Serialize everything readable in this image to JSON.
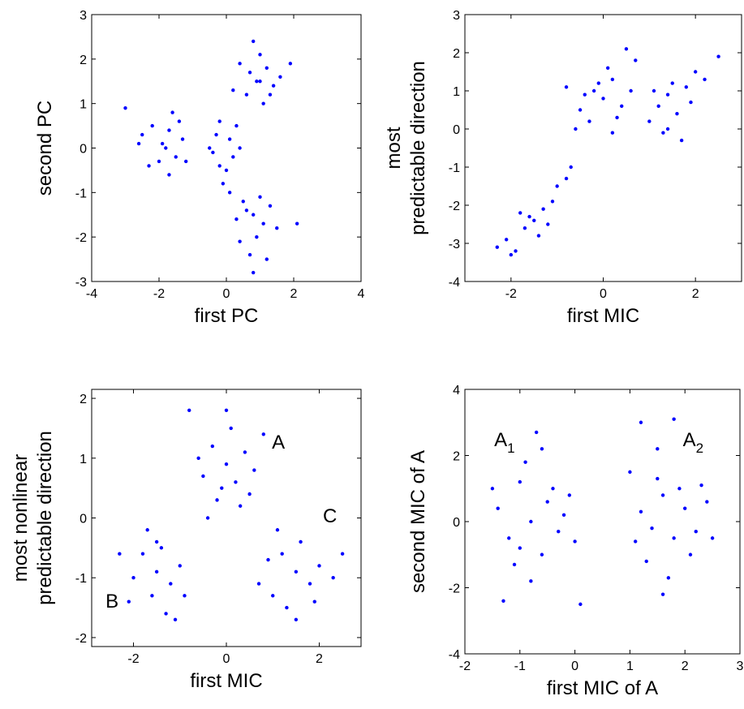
{
  "chart_data": [
    {
      "type": "scatter",
      "xlabel": "first PC",
      "ylabel": [
        "second PC"
      ],
      "color": "#0000ff",
      "xlim": [
        -4,
        4
      ],
      "ylim": [
        -3,
        3
      ],
      "xticks": [
        -4,
        -2,
        0,
        2,
        4
      ],
      "yticks": [
        -3,
        -2,
        -1,
        0,
        1,
        2,
        3
      ],
      "x": [
        -2.5,
        -2.2,
        -1.9,
        -1.7,
        -1.5,
        -2.0,
        -1.6,
        -1.3,
        -2.3,
        -1.8,
        -1.4,
        -2.6,
        -1.2,
        -3.0,
        -1.7,
        -0.2,
        0.1,
        -0.4,
        0.0,
        -0.3,
        0.2,
        -0.1,
        0.3,
        -0.5,
        0.1,
        -0.2,
        0.4,
        0.9,
        1.2,
        0.6,
        1.0,
        1.4,
        0.7,
        1.1,
        0.4,
        1.6,
        0.8,
        1.3,
        0.2,
        1.9,
        1.0,
        0.8,
        0.5,
        1.1,
        0.9,
        0.3,
        1.3,
        0.7,
        1.0,
        0.4,
        1.5,
        0.6,
        1.2,
        2.1,
        0.8
      ],
      "values": [
        0.3,
        0.5,
        0.1,
        0.4,
        -0.2,
        -0.3,
        0.8,
        0.2,
        -0.4,
        0.0,
        0.6,
        0.1,
        -0.3,
        0.9,
        -0.6,
        0.6,
        0.2,
        -0.1,
        -0.5,
        0.3,
        -0.2,
        -0.8,
        0.5,
        0.0,
        -1.0,
        -0.4,
        0.0,
        1.5,
        1.8,
        1.2,
        2.1,
        1.4,
        1.7,
        1.0,
        1.9,
        1.6,
        2.4,
        1.2,
        1.3,
        1.9,
        1.5,
        -1.5,
        -1.2,
        -1.7,
        -2.0,
        -1.6,
        -1.3,
        -2.4,
        -1.1,
        -2.1,
        -1.8,
        -1.4,
        -2.5,
        -1.7,
        -2.8
      ]
    },
    {
      "type": "scatter",
      "xlabel": "first MIC",
      "ylabel": [
        "most",
        "predictable direction"
      ],
      "color": "#0000ff",
      "xlim": [
        -3,
        3
      ],
      "ylim": [
        -4,
        3
      ],
      "xticks": [
        -2,
        0,
        2
      ],
      "yticks": [
        -4,
        -3,
        -2,
        -1,
        0,
        1,
        2,
        3
      ],
      "x": [
        -2.3,
        -2.1,
        -1.9,
        -1.7,
        -1.5,
        -1.4,
        -1.3,
        -1.6,
        -1.1,
        -1.0,
        -0.8,
        -1.2,
        -0.7,
        -2.0,
        -1.8,
        -0.5,
        -0.2,
        0.0,
        0.2,
        0.4,
        -0.3,
        0.1,
        0.5,
        -0.6,
        0.3,
        -0.1,
        0.6,
        -0.8,
        0.2,
        0.7,
        -0.4,
        1.0,
        1.2,
        1.4,
        1.6,
        1.8,
        1.3,
        2.0,
        1.5,
        2.2,
        1.1,
        1.7,
        2.5,
        1.9,
        1.4
      ],
      "values": [
        -3.1,
        -2.9,
        -3.2,
        -2.6,
        -2.4,
        -2.8,
        -2.1,
        -2.3,
        -1.9,
        -1.5,
        -1.3,
        -2.5,
        -1.0,
        -3.3,
        -2.2,
        0.5,
        1.0,
        0.8,
        1.3,
        0.6,
        0.2,
        1.6,
        2.1,
        0.0,
        0.3,
        1.2,
        1.0,
        1.1,
        -0.1,
        1.8,
        0.9,
        0.2,
        0.6,
        0.9,
        0.4,
        1.1,
        -0.1,
        1.5,
        1.2,
        1.3,
        1.0,
        -0.3,
        1.9,
        0.7,
        0.0
      ]
    },
    {
      "type": "scatter",
      "xlabel": "first MIC",
      "ylabel": [
        "most nonlinear",
        "predictable direction"
      ],
      "color": "#0000ff",
      "xlim": [
        -2.9,
        2.9
      ],
      "ylim": [
        -2.15,
        2.15
      ],
      "xticks": [
        -2,
        0,
        2
      ],
      "yticks": [
        -2,
        -1,
        0,
        1,
        2
      ],
      "x": [
        0,
        -0.3,
        0.2,
        0.4,
        -0.5,
        0.1,
        -0.2,
        0.6,
        -0.6,
        0.3,
        0.0,
        -0.8,
        0.8,
        -0.1,
        0.5,
        -0.4,
        -1.5,
        -1.8,
        -1.2,
        -2.0,
        -1.4,
        -1.6,
        -1.0,
        -2.3,
        -1.3,
        -1.7,
        -0.9,
        -1.1,
        -2.1,
        -1.5,
        1.5,
        1.2,
        1.8,
        1.0,
        1.6,
        2.0,
        1.3,
        0.9,
        2.3,
        1.5,
        1.1,
        1.9,
        2.5,
        0.7
      ],
      "values": [
        0.9,
        1.2,
        0.6,
        1.1,
        0.7,
        1.5,
        0.3,
        0.8,
        1.0,
        0.2,
        1.8,
        1.8,
        1.4,
        0.5,
        0.4,
        0.0,
        -0.9,
        -0.6,
        -1.1,
        -1.0,
        -0.5,
        -1.3,
        -0.8,
        -0.6,
        -1.6,
        -0.2,
        -1.3,
        -1.7,
        -1.4,
        -0.4,
        -0.9,
        -0.6,
        -1.1,
        -1.3,
        -0.4,
        -0.8,
        -1.5,
        -0.7,
        -1.0,
        -1.7,
        -0.2,
        -1.4,
        -0.6,
        -1.1
      ],
      "annotations": [
        {
          "text": "A",
          "x": 1.12,
          "y": 1.28
        },
        {
          "text": "B",
          "x": -2.46,
          "y": -1.38
        },
        {
          "text": "C",
          "x": 2.23,
          "y": 0.05
        }
      ]
    },
    {
      "type": "scatter",
      "xlabel": "first MIC of A",
      "ylabel": [
        "second MIC of A"
      ],
      "color": "#0000ff",
      "xlim": [
        -2,
        3
      ],
      "ylim": [
        -4,
        4
      ],
      "xticks": [
        -2,
        -1,
        0,
        1,
        2,
        3
      ],
      "yticks": [
        -4,
        -2,
        0,
        2,
        4
      ],
      "x": [
        -1.4,
        -1.2,
        -1.0,
        -0.8,
        -0.6,
        -0.9,
        -0.7,
        -0.5,
        -0.3,
        -1.1,
        -0.4,
        -0.2,
        0.0,
        -0.8,
        -1.3,
        0.1,
        -0.6,
        -1.5,
        -0.1,
        -1.0,
        1.2,
        1.4,
        1.6,
        1.8,
        2.0,
        1.3,
        1.5,
        1.9,
        2.2,
        1.1,
        1.7,
        2.4,
        1.5,
        1.2,
        1.8,
        2.5,
        1.0,
        2.1,
        1.6,
        2.3
      ],
      "values": [
        0.4,
        -0.5,
        1.2,
        0.0,
        -1.0,
        1.8,
        2.7,
        0.6,
        -0.3,
        -1.3,
        1.0,
        0.2,
        -0.6,
        -1.8,
        -2.4,
        -2.5,
        2.2,
        1.0,
        0.8,
        -0.8,
        0.3,
        -0.2,
        0.8,
        -0.5,
        0.4,
        -1.2,
        1.3,
        1.0,
        -0.3,
        -0.6,
        -1.7,
        0.6,
        2.2,
        3.0,
        3.1,
        -0.5,
        1.5,
        -1.0,
        -2.2,
        1.1
      ],
      "annotations": [
        {
          "text": "A",
          "sub": "1",
          "x": -1.28,
          "y": 2.5
        },
        {
          "text": "A",
          "sub": "2",
          "x": 2.15,
          "y": 2.5
        }
      ]
    }
  ]
}
